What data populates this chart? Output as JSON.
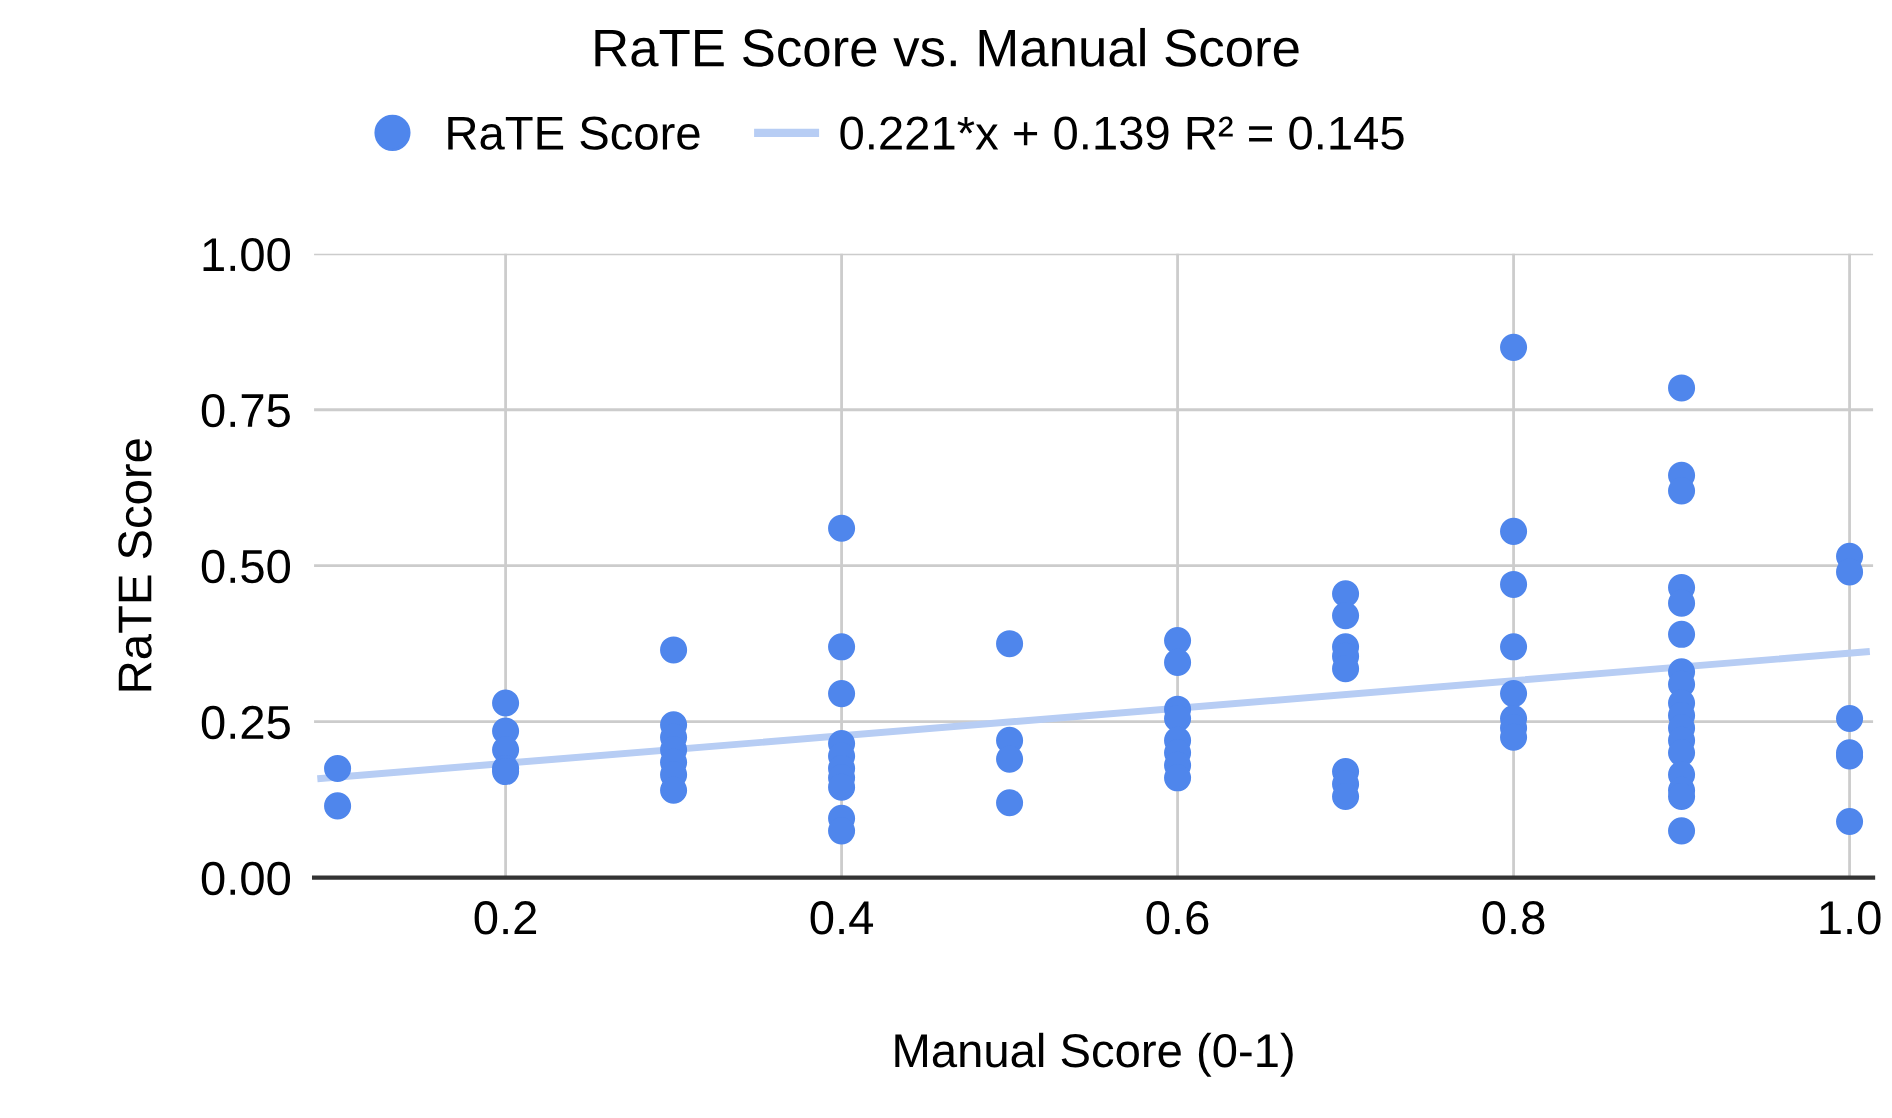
{
  "chart_data": {
    "type": "scatter",
    "title": "RaTE Score vs. Manual Score",
    "xlabel": "Manual Score (0-1)",
    "ylabel": "RaTE Score",
    "series": [
      {
        "name": "RaTE Score",
        "color": "#4f86ec",
        "marker": "circle",
        "x": [
          0.1,
          0.1,
          0.2,
          0.2,
          0.2,
          0.2,
          0.2,
          0.3,
          0.3,
          0.3,
          0.3,
          0.3,
          0.3,
          0.3,
          0.4,
          0.4,
          0.4,
          0.4,
          0.4,
          0.4,
          0.4,
          0.4,
          0.4,
          0.4,
          0.5,
          0.5,
          0.5,
          0.5,
          0.6,
          0.6,
          0.6,
          0.6,
          0.6,
          0.6,
          0.6,
          0.6,
          0.7,
          0.7,
          0.7,
          0.7,
          0.7,
          0.7,
          0.7,
          0.7,
          0.8,
          0.8,
          0.8,
          0.8,
          0.8,
          0.8,
          0.8,
          0.8,
          0.9,
          0.9,
          0.9,
          0.9,
          0.9,
          0.9,
          0.9,
          0.9,
          0.9,
          0.9,
          0.9,
          0.9,
          0.9,
          0.9,
          0.9,
          0.9,
          0.9,
          1.0,
          1.0,
          1.0,
          1.0,
          1.0,
          1.0
        ],
        "values": [
          0.175,
          0.115,
          0.28,
          0.235,
          0.205,
          0.175,
          0.17,
          0.365,
          0.245,
          0.225,
          0.205,
          0.185,
          0.165,
          0.14,
          0.56,
          0.37,
          0.295,
          0.215,
          0.195,
          0.175,
          0.16,
          0.145,
          0.095,
          0.075,
          0.375,
          0.22,
          0.19,
          0.12,
          0.38,
          0.345,
          0.27,
          0.255,
          0.22,
          0.2,
          0.18,
          0.16,
          0.455,
          0.42,
          0.37,
          0.355,
          0.335,
          0.17,
          0.15,
          0.13,
          0.85,
          0.555,
          0.47,
          0.37,
          0.295,
          0.255,
          0.24,
          0.225,
          0.785,
          0.645,
          0.62,
          0.465,
          0.44,
          0.39,
          0.33,
          0.31,
          0.28,
          0.26,
          0.24,
          0.22,
          0.2,
          0.165,
          0.14,
          0.13,
          0.075,
          0.515,
          0.49,
          0.255,
          0.2,
          0.195,
          0.09
        ]
      },
      {
        "name": "0.221*x + 0.139 R² = 0.145",
        "type": "line",
        "color": "#b7cdf4",
        "marker": "none",
        "line_style": "solid",
        "x": [
          0.09,
          1.01
        ],
        "values": [
          0.159,
          0.362
        ]
      }
    ],
    "xlim": [
      0.086,
      1.014
    ],
    "xticks": [
      0.2,
      0.4,
      0.6,
      0.8,
      {
        "value": 1.0,
        "label": "1.0"
      }
    ],
    "ylim": [
      0,
      1
    ],
    "yticks": [
      {
        "value": 0,
        "label": "0.00"
      },
      {
        "value": 0.25,
        "label": "0.25"
      },
      {
        "value": 0.5,
        "label": "0.50"
      },
      {
        "value": 0.75,
        "label": "0.75"
      },
      {
        "value": 1,
        "label": "1.00"
      }
    ],
    "grid": true,
    "legend": "top left"
  }
}
